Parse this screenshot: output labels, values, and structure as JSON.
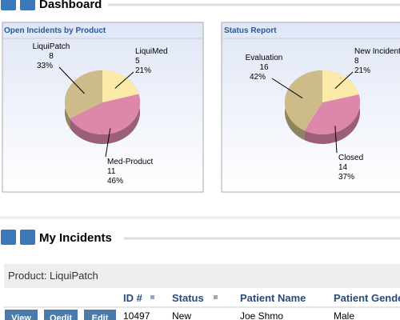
{
  "dashboard": {
    "title": "Dashboard",
    "panels": [
      {
        "title": "Open Incidents by Product",
        "type": "pie",
        "categories": [
          "LiquiMed",
          "Med-Product",
          "LiquiPatch"
        ],
        "values": [
          5,
          11,
          8
        ],
        "percent_labels": [
          "21%",
          "46%",
          "33%"
        ],
        "colors": [
          "#fbeaa8",
          "#dd88aa",
          "#cdbb8a"
        ]
      },
      {
        "title": "Status Report",
        "type": "pie",
        "categories": [
          "New Incident",
          "Closed",
          "Evaluation"
        ],
        "values": [
          8,
          14,
          16
        ],
        "percent_labels": [
          "21%",
          "37%",
          "42%"
        ],
        "colors": [
          "#fbeaa8",
          "#dd88aa",
          "#cdbb8a"
        ]
      }
    ]
  },
  "incidents": {
    "title": "My Incidents",
    "group": "Product: LiquiPatch",
    "columns": [
      "ID #",
      "Status",
      "Patient Name",
      "Patient Gender"
    ],
    "actions": [
      "View",
      "Qedit",
      "Edit"
    ],
    "rows": [
      [
        "10497",
        "New",
        "Joe Shmo",
        "Male"
      ]
    ]
  }
}
